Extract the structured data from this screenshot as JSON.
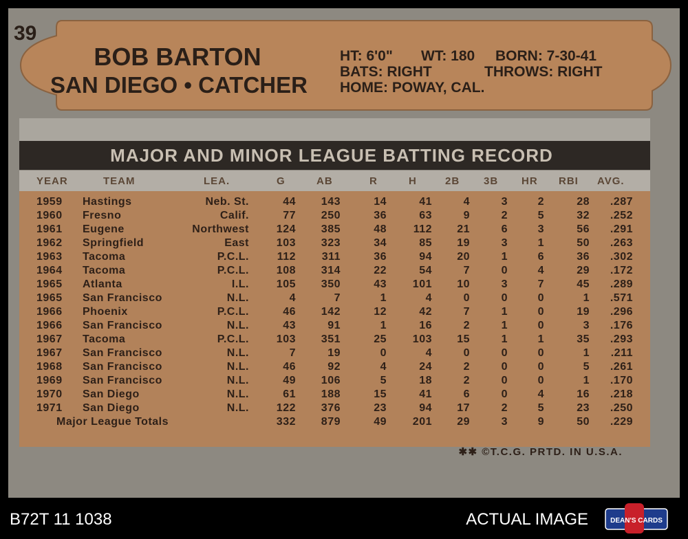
{
  "card_number": "39",
  "player": {
    "name": "BOB BARTON",
    "team_position": "SAN DIEGO • CATCHER"
  },
  "bio": {
    "height": "HT: 6'0\"",
    "weight": "WT: 180",
    "born": "BORN: 7-30-41",
    "bats": "BATS: RIGHT",
    "throws": "THROWS: RIGHT",
    "home": "HOME: POWAY, CAL."
  },
  "table": {
    "title": "MAJOR AND MINOR LEAGUE BATTING RECORD",
    "headers": [
      "YEAR",
      "TEAM",
      "LEA.",
      "G",
      "AB",
      "R",
      "H",
      "2B",
      "3B",
      "HR",
      "RBI",
      "AVG."
    ],
    "rows": [
      [
        "1959",
        "Hastings",
        "Neb. St.",
        "44",
        "143",
        "14",
        "41",
        "4",
        "3",
        "2",
        "28",
        ".287"
      ],
      [
        "1960",
        "Fresno",
        "Calif.",
        "77",
        "250",
        "36",
        "63",
        "9",
        "2",
        "5",
        "32",
        ".252"
      ],
      [
        "1961",
        "Eugene",
        "Northwest",
        "124",
        "385",
        "48",
        "112",
        "21",
        "6",
        "3",
        "56",
        ".291"
      ],
      [
        "1962",
        "Springfield",
        "East",
        "103",
        "323",
        "34",
        "85",
        "19",
        "3",
        "1",
        "50",
        ".263"
      ],
      [
        "1963",
        "Tacoma",
        "P.C.L.",
        "112",
        "311",
        "36",
        "94",
        "20",
        "1",
        "6",
        "36",
        ".302"
      ],
      [
        "1964",
        "Tacoma",
        "P.C.L.",
        "108",
        "314",
        "22",
        "54",
        "7",
        "0",
        "4",
        "29",
        ".172"
      ],
      [
        "1965",
        "Atlanta",
        "I.L.",
        "105",
        "350",
        "43",
        "101",
        "10",
        "3",
        "7",
        "45",
        ".289"
      ],
      [
        "1965",
        "San Francisco",
        "N.L.",
        "4",
        "7",
        "1",
        "4",
        "0",
        "0",
        "0",
        "1",
        ".571"
      ],
      [
        "1966",
        "Phoenix",
        "P.C.L.",
        "46",
        "142",
        "12",
        "42",
        "7",
        "1",
        "0",
        "19",
        ".296"
      ],
      [
        "1966",
        "San Francisco",
        "N.L.",
        "43",
        "91",
        "1",
        "16",
        "2",
        "1",
        "0",
        "3",
        ".176"
      ],
      [
        "1967",
        "Tacoma",
        "P.C.L.",
        "103",
        "351",
        "25",
        "103",
        "15",
        "1",
        "1",
        "35",
        ".293"
      ],
      [
        "1967",
        "San Francisco",
        "N.L.",
        "7",
        "19",
        "0",
        "4",
        "0",
        "0",
        "0",
        "1",
        ".211"
      ],
      [
        "1968",
        "San Francisco",
        "N.L.",
        "46",
        "92",
        "4",
        "24",
        "2",
        "0",
        "0",
        "5",
        ".261"
      ],
      [
        "1969",
        "San Francisco",
        "N.L.",
        "49",
        "106",
        "5",
        "18",
        "2",
        "0",
        "0",
        "1",
        ".170"
      ],
      [
        "1970",
        "San Diego",
        "N.L.",
        "61",
        "188",
        "15",
        "41",
        "6",
        "0",
        "4",
        "16",
        ".218"
      ],
      [
        "1971",
        "San Diego",
        "N.L.",
        "122",
        "376",
        "23",
        "94",
        "17",
        "2",
        "5",
        "23",
        ".250"
      ]
    ],
    "totals": {
      "label": "Major League Totals",
      "values": [
        "332",
        "879",
        "49",
        "201",
        "29",
        "3",
        "9",
        "50",
        ".229"
      ]
    }
  },
  "copyright": "✱✱ ©T.C.G. PRTD. IN U.S.A.",
  "footer": {
    "sku": "B72T 11 1038",
    "note": "ACTUAL IMAGE",
    "logo": "DEAN'S CARDS"
  }
}
